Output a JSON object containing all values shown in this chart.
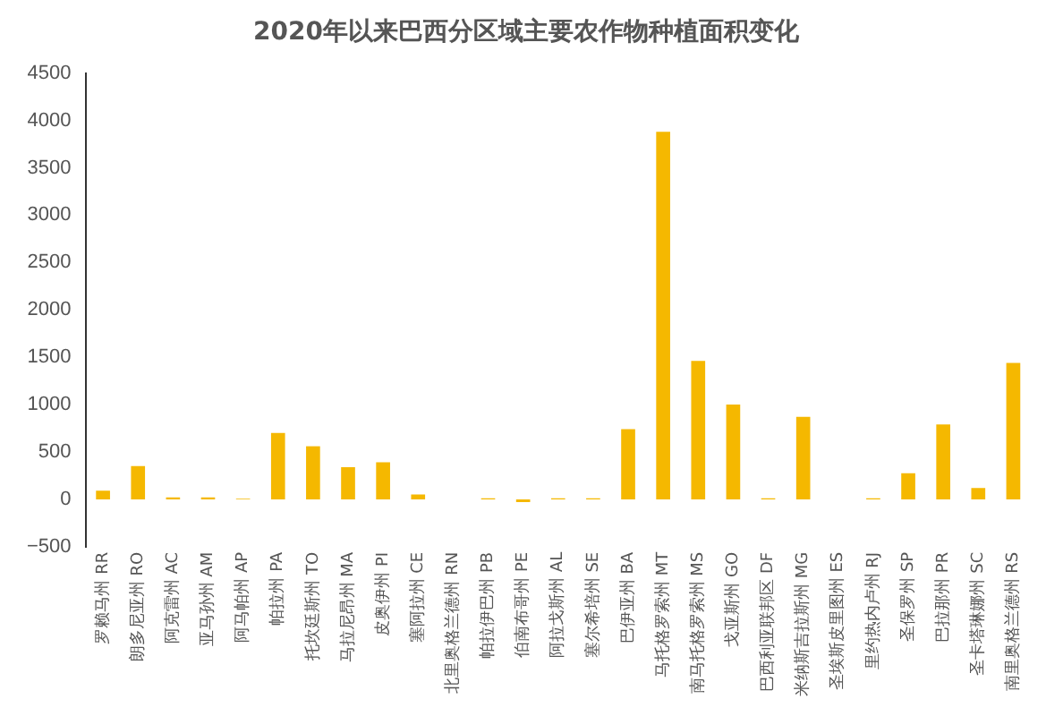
{
  "chart_data": {
    "type": "bar",
    "title": "2020年以来巴西分区域主要农作物种植面积变化",
    "categories": [
      "罗赖马州 RR",
      "朗多尼亚州 RO",
      "阿克雷州 AC",
      "亚马孙州 AM",
      "阿马帕州 AP",
      "帕拉州 PA",
      "托坎廷斯州 TO",
      "马拉尼昂州 MA",
      "皮奥伊州 PI",
      "塞阿拉州 CE",
      "北里奥格兰德州 RN",
      "帕拉伊巴州 PB",
      "伯南布哥州 PE",
      "阿拉戈斯州 AL",
      "塞尔希培州 SE",
      "巴伊亚州 BA",
      "马托格罗索州 MT",
      "南马托格罗索州 MS",
      "戈亚斯州 GO",
      "巴西利亚联邦区 DF",
      "米纳斯吉拉斯州 MG",
      "圣埃斯皮里图州 ES",
      "里约热内卢州 RJ",
      "圣保罗州 SP",
      "巴拉那州 PR",
      "圣卡塔琳娜州 SC",
      "南里奥格兰德州 RS"
    ],
    "values": [
      90,
      350,
      20,
      20,
      5,
      700,
      560,
      340,
      390,
      50,
      0,
      10,
      -30,
      10,
      10,
      740,
      3880,
      1460,
      1000,
      10,
      870,
      0,
      10,
      275,
      790,
      120,
      1440
    ],
    "color": "#f5b800",
    "ylim": [
      -500,
      4500
    ],
    "yticks": [
      -500,
      0,
      500,
      1000,
      1500,
      2000,
      2500,
      3000,
      3500,
      4000,
      4500
    ],
    "grid": false,
    "legend": false
  }
}
